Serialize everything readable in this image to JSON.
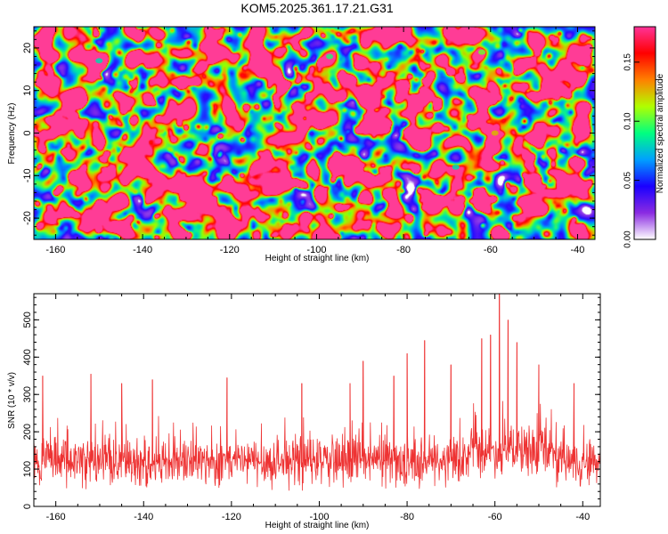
{
  "title": "KOM5.2025.361.17.21.G31",
  "chart_data": [
    {
      "type": "heatmap",
      "title": "KOM5.2025.361.17.21.G31",
      "xlabel": "Height of straight line (km)",
      "ylabel": "Frequency (Hz)",
      "xlim": [
        -165,
        -36
      ],
      "ylim": [
        -25,
        25
      ],
      "xticks": [
        -160,
        -140,
        -120,
        -100,
        -80,
        -60,
        -40
      ],
      "xtick_labels": [
        "-160",
        "-140",
        "-120",
        "-100",
        "-80",
        "-60",
        "-40"
      ],
      "yticks": [
        20,
        10,
        0,
        -10,
        -20
      ],
      "ytick_labels": [
        "20",
        "10",
        "0",
        "-10",
        "-20"
      ],
      "colorbar": {
        "label": "Normalized spectral amplitude",
        "range": [
          0,
          0.18
        ],
        "ticks": [
          0,
          0.05,
          0.1,
          0.15
        ],
        "tick_labels": [
          "0.00",
          "0.05",
          "0.10",
          "0.15"
        ],
        "colors": [
          "#ffffff",
          "#8a2be2",
          "#1a00ff",
          "#00a0ff",
          "#00ff80",
          "#b0ff00",
          "#ff8000",
          "#ff0000",
          "#ff3399"
        ]
      },
      "hotspots": [
        {
          "x": -61,
          "y": 7.5,
          "value": 0.18
        },
        {
          "x": -59,
          "y": 0,
          "value": 0.14
        },
        {
          "x": -62,
          "y": 19,
          "value": 0.12
        },
        {
          "x": -68,
          "y": -8,
          "value": 0.1
        },
        {
          "x": -97,
          "y": 18,
          "value": 0.11
        },
        {
          "x": -150,
          "y": 17,
          "value": 0.1
        }
      ]
    },
    {
      "type": "line",
      "xlabel": "Height of straight line (km)",
      "ylabel": "SNR (10 * v/v)",
      "xlim": [
        -165,
        -36
      ],
      "ylim": [
        0,
        570
      ],
      "xticks": [
        -160,
        -140,
        -120,
        -100,
        -80,
        -60,
        -40
      ],
      "xtick_labels": [
        "-160",
        "-140",
        "-120",
        "-100",
        "-80",
        "-60",
        "-40"
      ],
      "yticks": [
        0,
        100,
        200,
        300,
        400,
        500
      ],
      "ytick_labels": [
        "0",
        "100",
        "200",
        "300",
        "400",
        "500"
      ],
      "grid": false,
      "series_color": "#ee3333",
      "baseline_mean": 120,
      "peaks": [
        {
          "x": -163,
          "y": 350
        },
        {
          "x": -152,
          "y": 355
        },
        {
          "x": -145,
          "y": 330
        },
        {
          "x": -138,
          "y": 340
        },
        {
          "x": -121,
          "y": 345
        },
        {
          "x": -104,
          "y": 330
        },
        {
          "x": -93,
          "y": 330
        },
        {
          "x": -90,
          "y": 390
        },
        {
          "x": -83,
          "y": 350
        },
        {
          "x": -80,
          "y": 410
        },
        {
          "x": -76,
          "y": 445
        },
        {
          "x": -70,
          "y": 380
        },
        {
          "x": -63,
          "y": 450
        },
        {
          "x": -61,
          "y": 460
        },
        {
          "x": -59,
          "y": 570
        },
        {
          "x": -57,
          "y": 500
        },
        {
          "x": -55,
          "y": 440
        },
        {
          "x": -50,
          "y": 380
        },
        {
          "x": -42,
          "y": 330
        }
      ]
    }
  ]
}
